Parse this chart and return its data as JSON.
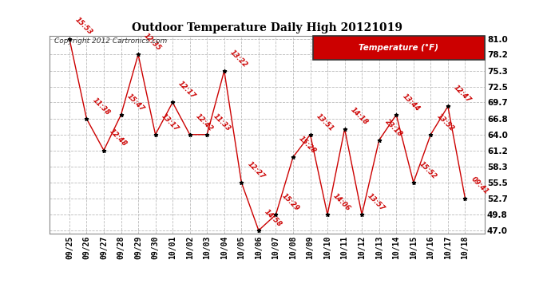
{
  "title": "Outdoor Temperature Daily High 20121019",
  "copyright_text": "Copyright 2012 Cartronics.com",
  "legend_label": "Temperature (°F)",
  "dates": [
    "09/25",
    "09/26",
    "09/27",
    "09/28",
    "09/29",
    "09/30",
    "10/01",
    "10/02",
    "10/03",
    "10/04",
    "10/05",
    "10/06",
    "10/07",
    "10/08",
    "10/09",
    "10/10",
    "10/11",
    "10/12",
    "10/13",
    "10/14",
    "10/15",
    "10/16",
    "10/17",
    "10/18"
  ],
  "values": [
    81.0,
    66.8,
    61.2,
    67.5,
    78.2,
    64.0,
    69.7,
    64.0,
    64.0,
    75.3,
    55.5,
    47.0,
    49.8,
    60.0,
    64.0,
    49.8,
    65.0,
    49.8,
    63.0,
    67.5,
    55.5,
    64.0,
    69.0,
    52.7
  ],
  "point_labels": [
    "15:53",
    "11:38",
    "12:48",
    "15:47",
    "12:35",
    "13:17",
    "12:17",
    "12:42",
    "11:33",
    "13:22",
    "12:27",
    "14:58",
    "15:29",
    "15:28",
    "13:51",
    "14:06",
    "14:18",
    "13:57",
    "23:18",
    "13:44",
    "15:52",
    "13:52",
    "12:47",
    "09:41"
  ],
  "ylim": [
    47.0,
    81.0
  ],
  "yticks": [
    47.0,
    49.8,
    52.7,
    55.5,
    58.3,
    61.2,
    64.0,
    66.8,
    69.7,
    72.5,
    75.3,
    78.2,
    81.0
  ],
  "line_color": "#cc0000",
  "marker_color": "#000000",
  "label_color": "#cc0000",
  "bg_color": "#ffffff",
  "grid_color": "#bbbbbb",
  "legend_bg": "#cc0000",
  "legend_text_color": "#ffffff",
  "fig_width": 6.9,
  "fig_height": 3.75,
  "dpi": 100
}
